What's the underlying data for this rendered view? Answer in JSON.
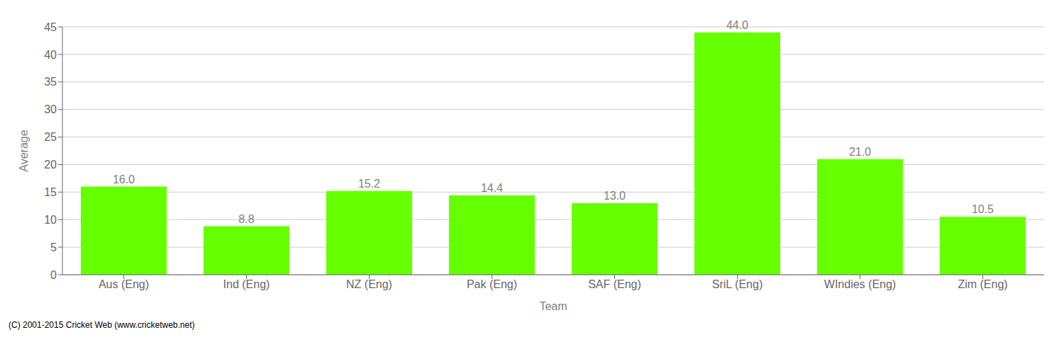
{
  "chart_data": {
    "type": "bar",
    "categories": [
      "Aus (Eng)",
      "Ind (Eng)",
      "NZ (Eng)",
      "Pak (Eng)",
      "SAF (Eng)",
      "SriL (Eng)",
      "WIndies (Eng)",
      "Zim (Eng)"
    ],
    "values": [
      16.0,
      8.8,
      15.2,
      14.4,
      13.0,
      44.0,
      21.0,
      10.5
    ],
    "value_labels": [
      "16.0",
      "8.8",
      "15.2",
      "14.4",
      "13.0",
      "44.0",
      "21.0",
      "10.5"
    ],
    "data_labels": true,
    "color": "#66ff00",
    "xlabel": "Team",
    "ylabel": "Average",
    "ylim": [
      0,
      45
    ],
    "yticks": [
      0,
      5,
      10,
      15,
      20,
      25,
      30,
      35,
      40,
      45
    ],
    "grid": true,
    "annotations": [
      "(C) 2001-2015 Cricket Web (www.cricketweb.net)"
    ]
  }
}
